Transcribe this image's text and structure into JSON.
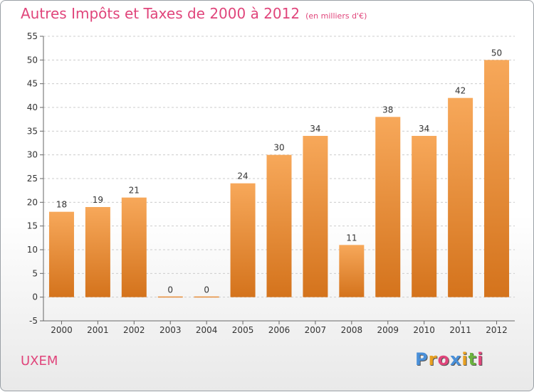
{
  "header": {
    "title": "Autres Impôts et Taxes de 2000 à 2012",
    "unit": "(en milliers d'€)"
  },
  "footer": {
    "town": "UXEM",
    "logo_text": "Proxiti",
    "logo_colors": [
      "#4a90d9",
      "#e8a020",
      "#e0457b",
      "#4a90d9",
      "#e8a020",
      "#6cb33f",
      "#e0457b"
    ]
  },
  "colors": {
    "bar_light": "#f7a85a",
    "bar_dark": "#d4731c",
    "title": "#e0457b",
    "grid": "#cccccc",
    "axis": "#666666"
  },
  "chart_data": {
    "type": "bar",
    "title": "Autres Impôts et Taxes de 2000 à 2012",
    "subtitle": "(en milliers d'€)",
    "xlabel": "",
    "ylabel": "",
    "categories": [
      "2000",
      "2001",
      "2002",
      "2003",
      "2004",
      "2005",
      "2006",
      "2007",
      "2008",
      "2009",
      "2010",
      "2011",
      "2012"
    ],
    "values": [
      18,
      19,
      21,
      0,
      0,
      24,
      30,
      34,
      11,
      38,
      34,
      42,
      50
    ],
    "ylim": [
      -5,
      55
    ],
    "yticks": [
      -5,
      0,
      5,
      10,
      15,
      20,
      25,
      30,
      35,
      40,
      45,
      50,
      55
    ],
    "grid": true,
    "data_labels": true
  }
}
